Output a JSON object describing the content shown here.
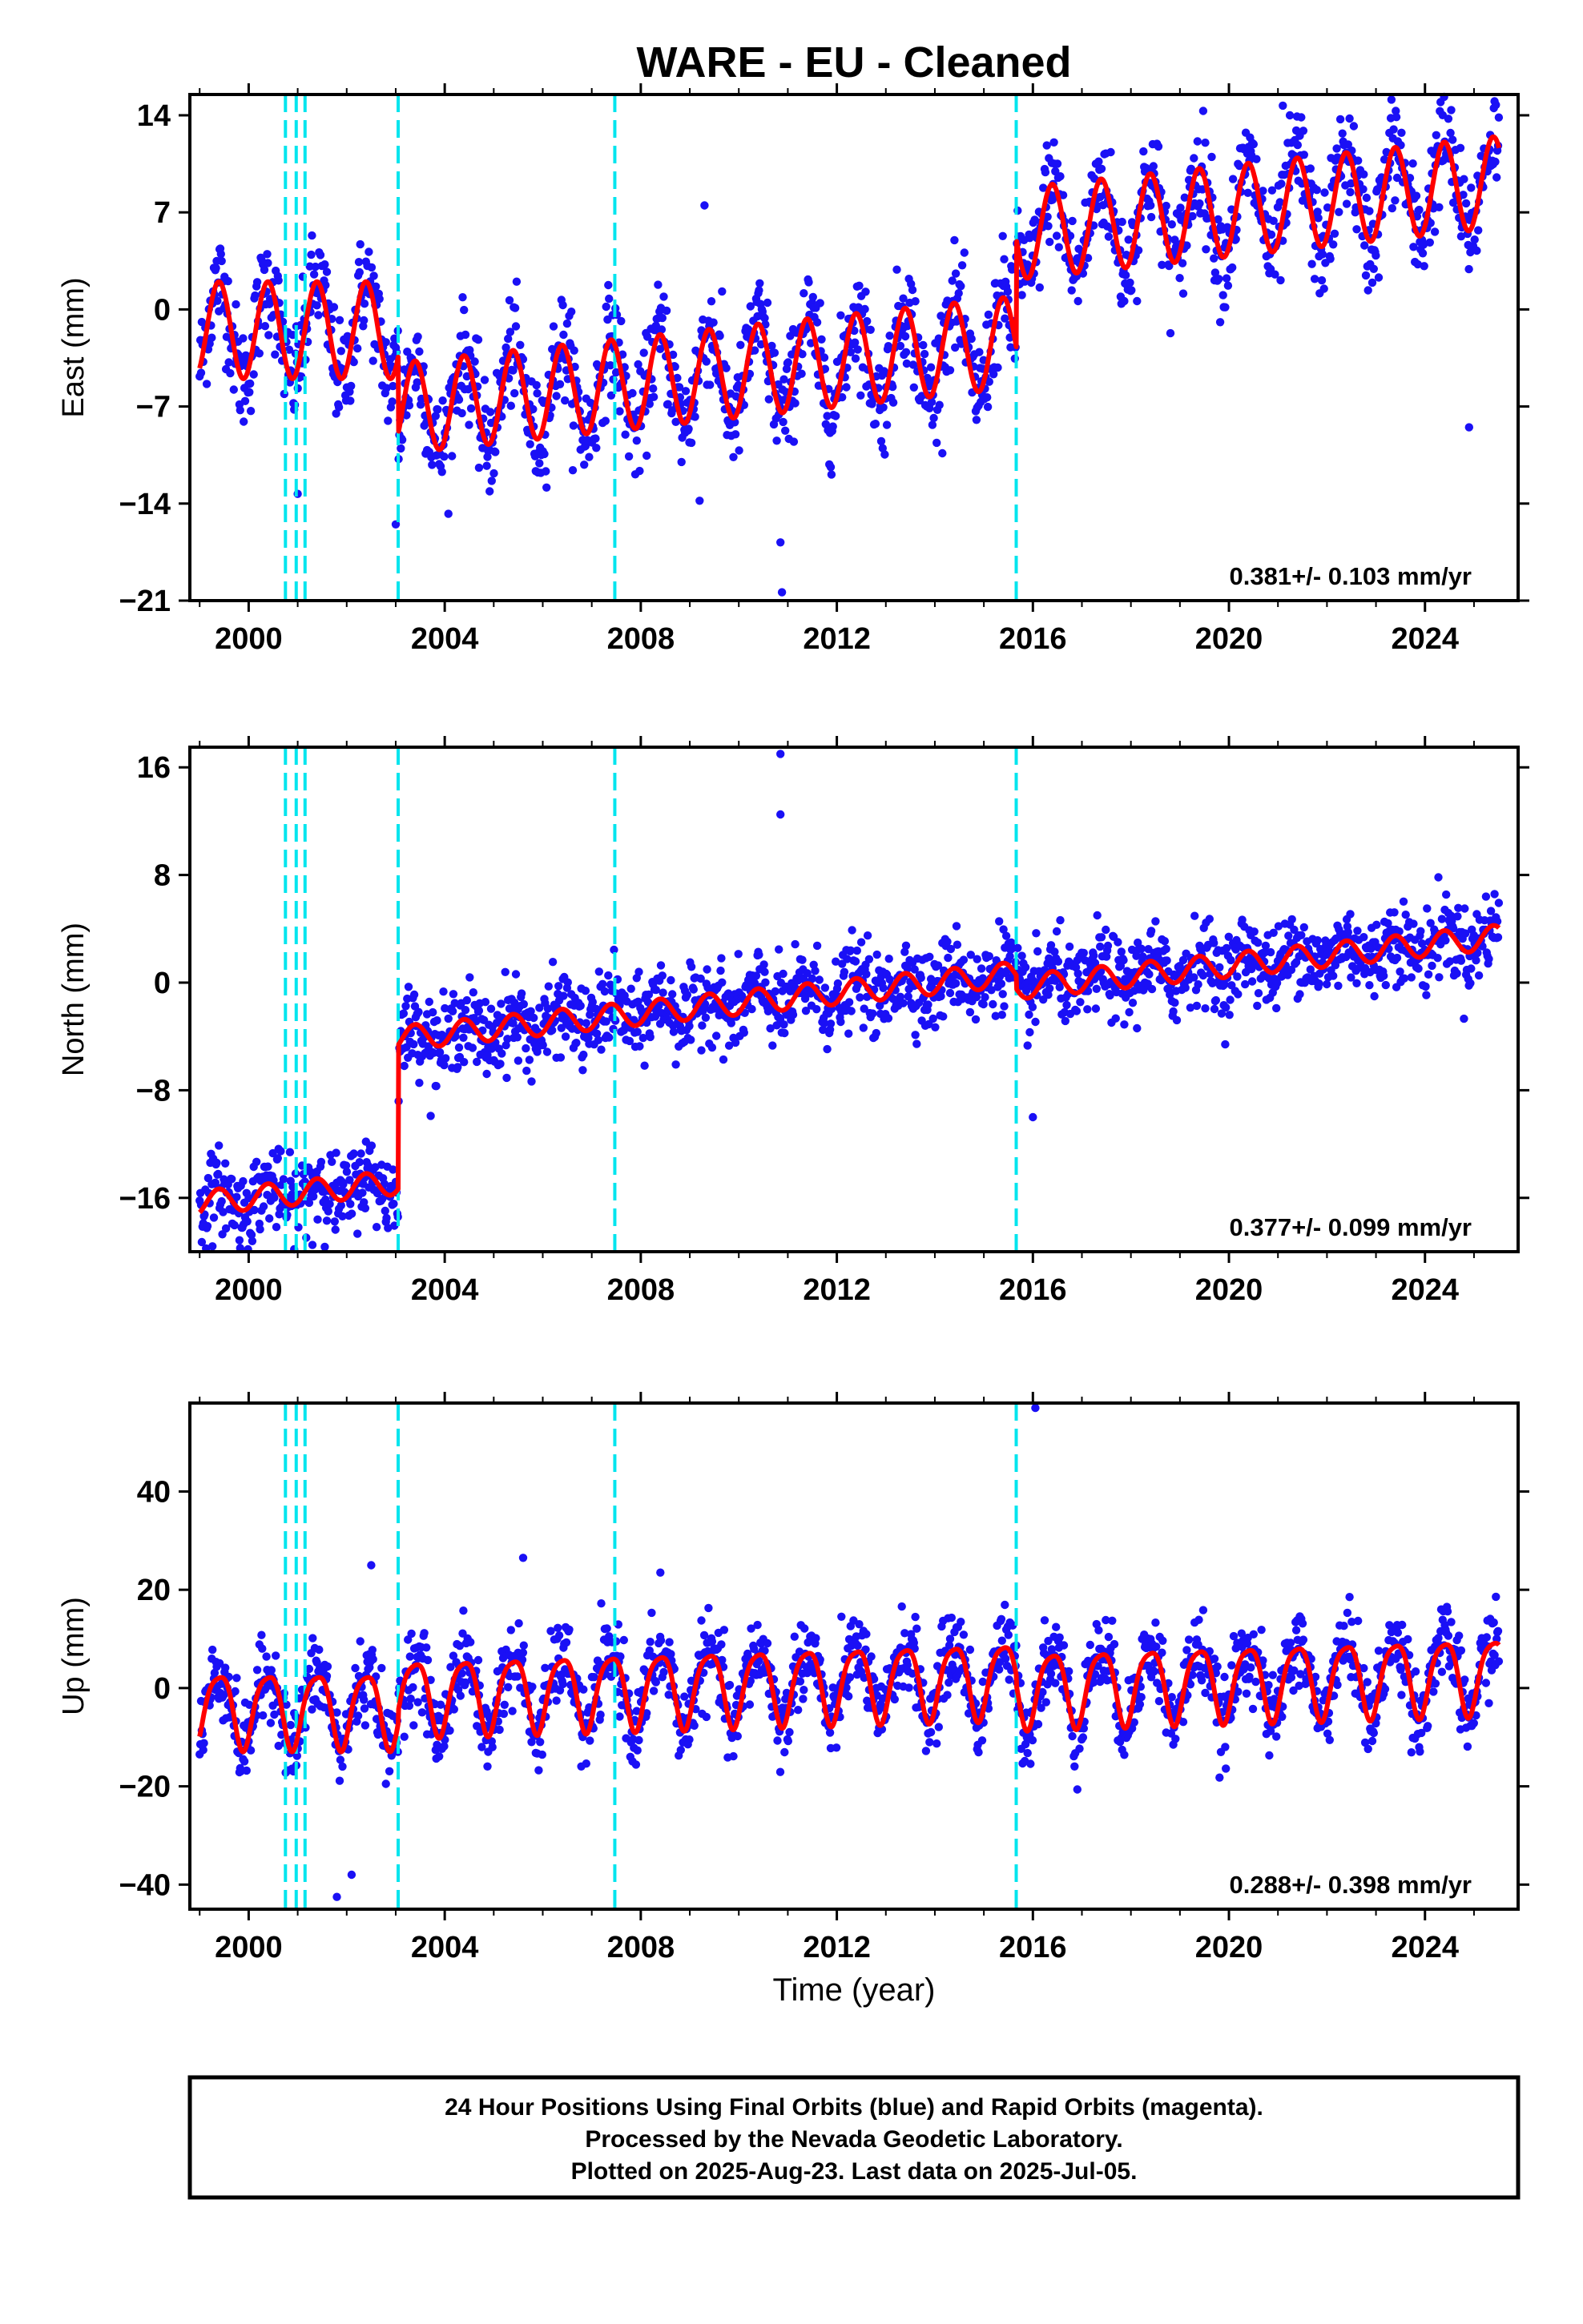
{
  "chart_data": [
    {
      "type": "scatter",
      "title": "WARE  - EU - Cleaned",
      "xlabel": "",
      "ylabel": "East (mm)",
      "xlim": [
        1998.8,
        2025.9
      ],
      "ylim": [
        -21,
        15.5
      ],
      "xticks": [
        2000,
        2004,
        2008,
        2012,
        2016,
        2020,
        2024
      ],
      "xtick_labels": [
        "2000",
        "2004",
        "2008",
        "2012",
        "2016",
        "2020",
        "2024"
      ],
      "yticks": [
        -21,
        -14,
        -7,
        0,
        7,
        14
      ],
      "ytick_labels": [
        "−21",
        "−14",
        "−7",
        "0",
        "7",
        "14"
      ],
      "rate_text": "0.381+/- 0.103 mm/yr",
      "events": [
        2000.75,
        2000.97,
        2001.15,
        2003.05,
        2007.47,
        2015.66
      ],
      "model": {
        "name": "red model fit",
        "segments": [
          {
            "from": 1999.0,
            "to": 2003.05,
            "offset": -1.5,
            "rate": 0.0,
            "annual_amp": 3.5,
            "semi_amp": 0.0
          },
          {
            "from": 2003.05,
            "to": 2015.66,
            "offset": -4.5,
            "rate": 0.38,
            "annual_amp": 3.3,
            "semi_amp": 0.0
          },
          {
            "from": 2015.66,
            "to": 2025.5,
            "offset": 3.3,
            "rate": 0.38,
            "annual_amp": 3.3,
            "semi_amp": 0.0
          }
        ],
        "noise": 1.9
      },
      "outliers": [
        [
          2010.85,
          -16.8
        ],
        [
          2010.88,
          -20.4
        ],
        [
          2009.2,
          -13.8
        ],
        [
          2009.3,
          7.5
        ],
        [
          2021.1,
          14.7
        ],
        [
          2003.0,
          -15.5
        ],
        [
          2001.0,
          -13.3
        ],
        [
          2024.9,
          -8.5
        ]
      ]
    },
    {
      "type": "scatter",
      "title": "",
      "xlabel": "",
      "ylabel": "North (mm)",
      "xlim": [
        1998.8,
        2025.9
      ],
      "ylim": [
        -20,
        17.5
      ],
      "xticks": [
        2000,
        2004,
        2008,
        2012,
        2016,
        2020,
        2024
      ],
      "xtick_labels": [
        "2000",
        "2004",
        "2008",
        "2012",
        "2016",
        "2020",
        "2024"
      ],
      "yticks": [
        -16,
        -8,
        0,
        8,
        16
      ],
      "ytick_labels": [
        "−16",
        "−8",
        "0",
        "8",
        "16"
      ],
      "rate_text": "0.377+/- 0.099 mm/yr",
      "events": [
        2000.75,
        2000.97,
        2001.15,
        2003.05,
        2007.47,
        2015.66
      ],
      "model": {
        "name": "red model fit",
        "segments": [
          {
            "from": 1999.0,
            "to": 2003.05,
            "offset": -12.2,
            "rate": 0.38,
            "annual_amp": 0.9,
            "semi_amp": 0.0
          },
          {
            "from": 2003.05,
            "to": 2015.66,
            "offset": -1.5,
            "rate": 0.38,
            "annual_amp": 0.9,
            "semi_amp": 0.0
          },
          {
            "from": 2015.66,
            "to": 2025.5,
            "offset": -2.5,
            "rate": 0.38,
            "annual_amp": 0.9,
            "semi_amp": 0.0
          }
        ],
        "noise": 1.5
      },
      "outliers": [
        [
          2010.85,
          17.0
        ],
        [
          2010.85,
          12.5
        ],
        [
          2016.0,
          -10.0
        ],
        [
          2001.3,
          -19.5
        ],
        [
          2005.5,
          -5.8
        ]
      ]
    },
    {
      "type": "scatter",
      "title": "",
      "xlabel": "Time (year)",
      "ylabel": "Up (mm)",
      "xlim": [
        1998.8,
        2025.9
      ],
      "ylim": [
        -45,
        58
      ],
      "xticks": [
        2000,
        2004,
        2008,
        2012,
        2016,
        2020,
        2024
      ],
      "xtick_labels": [
        "2000",
        "2004",
        "2008",
        "2012",
        "2016",
        "2020",
        "2024"
      ],
      "yticks": [
        -40,
        -20,
        0,
        20,
        40
      ],
      "ytick_labels": [
        "−40",
        "−20",
        "0",
        "20",
        "40"
      ],
      "rate_text": "0.288+/- 0.398 mm/yr",
      "events": [
        2000.75,
        2000.97,
        2001.15,
        2003.05,
        2007.47,
        2015.66
      ],
      "model": {
        "name": "red model fit",
        "segments": [
          {
            "from": 1999.0,
            "to": 2003.05,
            "offset": -4.0,
            "rate": 0.0,
            "annual_amp": 7.5,
            "semi_amp": 1.5
          },
          {
            "from": 2003.05,
            "to": 2015.66,
            "offset": 0.5,
            "rate": 0.29,
            "annual_amp": 7.5,
            "semi_amp": 1.5
          },
          {
            "from": 2015.66,
            "to": 2025.5,
            "offset": -1.5,
            "rate": 0.29,
            "annual_amp": 7.5,
            "semi_amp": 1.5
          }
        ],
        "noise": 4.0
      },
      "outliers": [
        [
          2016.05,
          57.0
        ],
        [
          2005.6,
          26.5
        ],
        [
          2002.5,
          25.0
        ],
        [
          2001.8,
          -42.5
        ],
        [
          2002.1,
          -38.0
        ],
        [
          2008.4,
          23.5
        ]
      ]
    }
  ],
  "colors": {
    "points": "#1a10f5",
    "model": "#ff0000",
    "events": "#00e5ee",
    "frame": "#000000"
  },
  "caption": {
    "line1": "24 Hour Positions Using Final Orbits (blue) and Rapid Orbits (magenta).",
    "line2": "Processed by the Nevada Geodetic Laboratory.",
    "line3": "Plotted on 2025-Aug-23. Last data on 2025-Jul-05."
  }
}
